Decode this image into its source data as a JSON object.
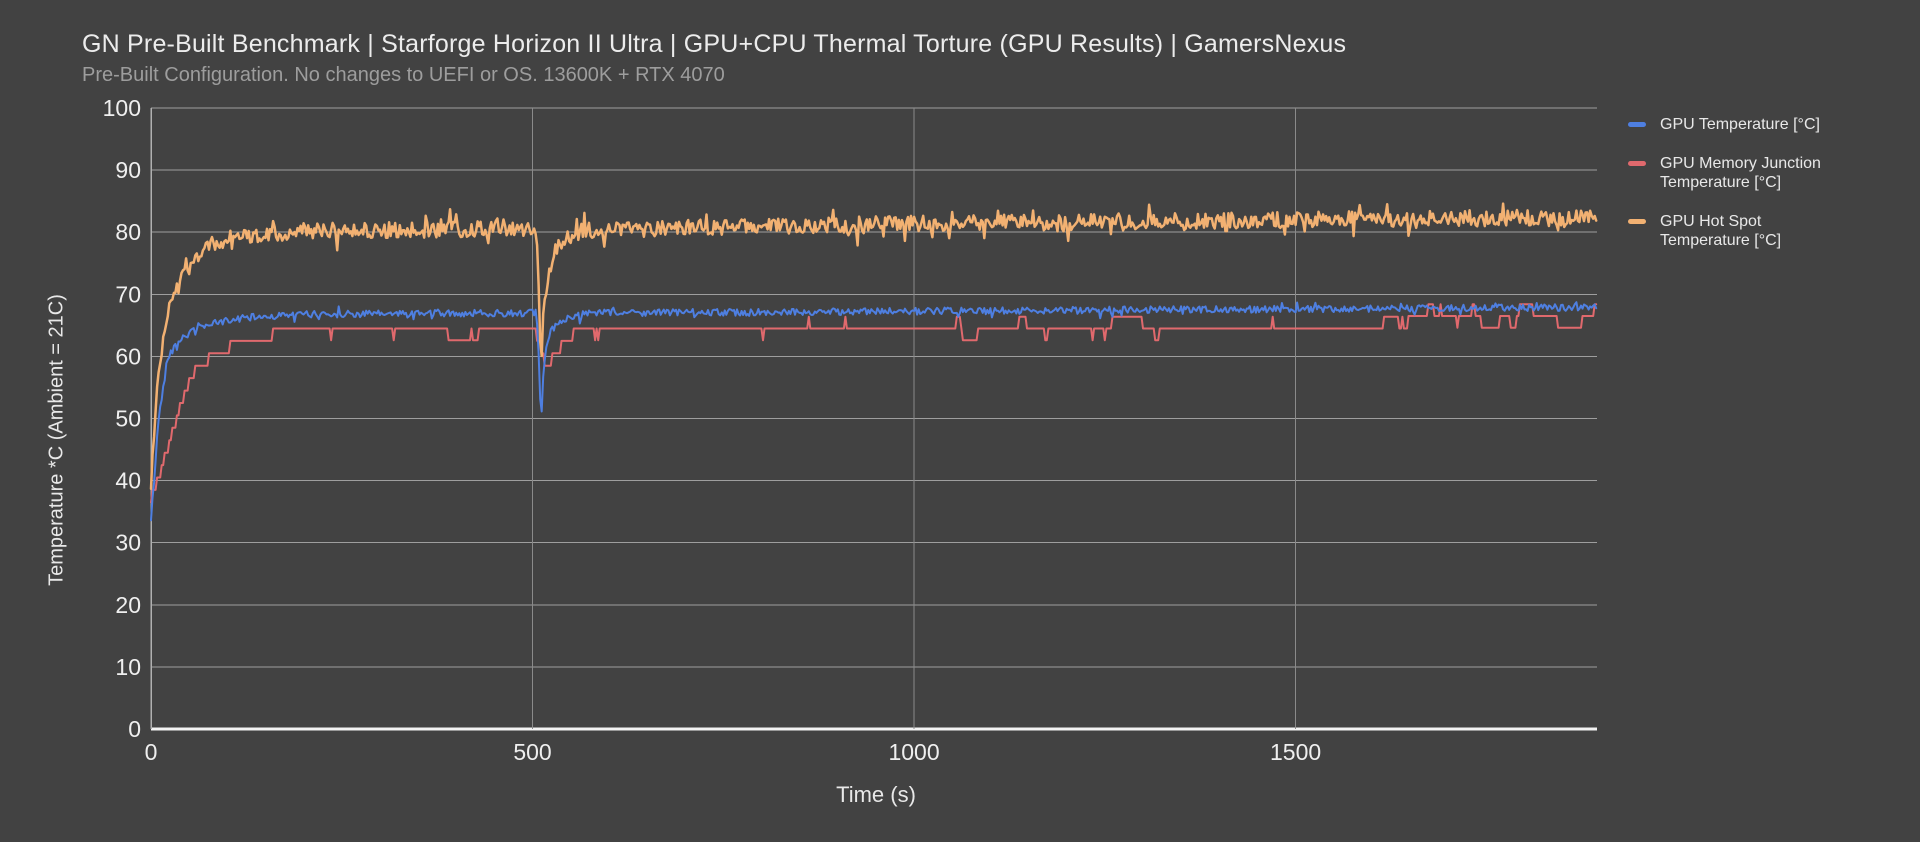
{
  "page": {
    "background": "#424242"
  },
  "chart_data": {
    "type": "line",
    "title": "GN Pre-Built Benchmark | Starforge Horizon II Ultra | GPU+CPU Thermal Torture (GPU Results) | GamersNexus",
    "subtitle": "Pre-Built Configuration. No changes to UEFI or OS. 13600K + RTX 4070",
    "xlabel": "Time (s)",
    "ylabel": "Temperature *C (Ambient = 21C)",
    "xlim": [
      0,
      1895
    ],
    "ylim": [
      0,
      100
    ],
    "x_ticks": [
      0,
      500,
      1000,
      1500
    ],
    "y_ticks": [
      0,
      10,
      20,
      30,
      40,
      50,
      60,
      70,
      80,
      90,
      100
    ],
    "grid": true,
    "legend_position": "right",
    "colors": {
      "background": "#424242",
      "grid": "#9e9e9e",
      "grid_vertical": "#8a8a8a",
      "axis": "#f3f3f3",
      "axis_left": "#b0b0b0",
      "title": "#ececec",
      "subtitle": "#9d9d9d",
      "tick_label": "#efefef",
      "legend_text": "#e8e8e8"
    },
    "series": [
      {
        "name": "GPU Temperature [°C]",
        "color": "#4e7fe1",
        "style": "noisy",
        "steady_value": 67,
        "noise": 1.1,
        "spike": 2.0,
        "spike_prob": 0.08,
        "seed": 42,
        "anchors": [
          [
            0,
            33.5
          ],
          [
            10,
            50
          ],
          [
            22,
            60
          ],
          [
            40,
            63
          ],
          [
            70,
            65
          ],
          [
            120,
            66.2
          ],
          [
            200,
            66.8
          ],
          [
            505,
            67
          ],
          [
            509,
            58
          ],
          [
            511,
            47.5
          ],
          [
            514,
            57
          ],
          [
            518,
            62
          ],
          [
            526,
            64.5
          ],
          [
            545,
            66.2
          ],
          [
            575,
            67
          ],
          [
            900,
            67.2
          ],
          [
            1300,
            67.5
          ],
          [
            1895,
            67.9
          ]
        ]
      },
      {
        "name": "GPU Memory Junction Temperature [°C]",
        "color": "#e0696d",
        "style": "steps",
        "steady_value": 64.5,
        "step": 2,
        "seed": 7,
        "anchors": [
          [
            0,
            36.5
          ],
          [
            15,
            42
          ],
          [
            30,
            48
          ],
          [
            45,
            54
          ],
          [
            60,
            57.5
          ],
          [
            80,
            59.5
          ],
          [
            110,
            61.5
          ],
          [
            160,
            63
          ],
          [
            230,
            64.3
          ],
          [
            500,
            64.3
          ],
          [
            508,
            62
          ],
          [
            514,
            59
          ],
          [
            522,
            58.5
          ],
          [
            532,
            60.3
          ],
          [
            548,
            62.3
          ],
          [
            562,
            64.3
          ],
          [
            900,
            64.5
          ],
          [
            1400,
            64.8
          ],
          [
            1895,
            65.2
          ]
        ]
      },
      {
        "name": "GPU Hot Spot Temperature [°C]",
        "color": "#f2b172",
        "style": "noisy",
        "steady_value": 81,
        "noise": 2.6,
        "spike": 4.4,
        "spike_prob": 0.14,
        "seed": 1337,
        "anchors": [
          [
            0,
            39.5
          ],
          [
            8,
            55
          ],
          [
            18,
            65
          ],
          [
            30,
            71
          ],
          [
            50,
            75.5
          ],
          [
            80,
            78
          ],
          [
            120,
            79.3
          ],
          [
            200,
            80.2
          ],
          [
            505,
            80.6
          ],
          [
            509,
            70
          ],
          [
            511,
            57
          ],
          [
            514,
            66
          ],
          [
            521,
            74
          ],
          [
            535,
            78.5
          ],
          [
            565,
            80.3
          ],
          [
            900,
            81.2
          ],
          [
            1300,
            81.8
          ],
          [
            1895,
            82.4
          ]
        ]
      }
    ]
  }
}
